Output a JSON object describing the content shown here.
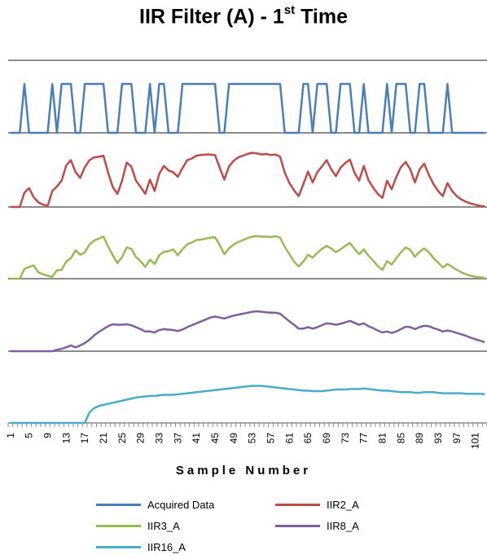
{
  "chart_data": {
    "type": "line",
    "title": "IIR Filter (A) - ",
    "title_ordinal": "1",
    "title_sup": "st",
    "title_tail": " Time",
    "xlabel": "Sample Number",
    "ylabel": "",
    "layout": "stacked panels, one series per panel, no y-axis labels, horizontal gray baselines",
    "x_tick_labels": [
      "1",
      "5",
      "9",
      "13",
      "17",
      "21",
      "25",
      "29",
      "33",
      "37",
      "41",
      "45",
      "49",
      "53",
      "57",
      "61",
      "65",
      "69",
      "73",
      "77",
      "81",
      "85",
      "89",
      "93",
      "97",
      "101"
    ],
    "x": [
      1,
      2,
      3,
      4,
      5,
      6,
      7,
      8,
      9,
      10,
      11,
      12,
      13,
      14,
      15,
      16,
      17,
      18,
      19,
      20,
      21,
      22,
      23,
      24,
      25,
      26,
      27,
      28,
      29,
      30,
      31,
      32,
      33,
      34,
      35,
      36,
      37,
      38,
      39,
      40,
      41,
      42,
      43,
      44,
      45,
      46,
      47,
      48,
      49,
      50,
      51,
      52,
      53,
      54,
      55,
      56,
      57,
      58,
      59,
      60,
      61,
      62,
      63,
      64,
      65,
      66,
      67,
      68,
      69,
      70,
      71,
      72,
      73,
      74,
      75,
      76,
      77,
      78,
      79,
      80,
      81,
      82,
      83,
      84,
      85,
      86,
      87,
      88,
      89,
      90,
      91,
      92,
      93,
      94,
      95,
      96,
      97,
      98,
      99,
      100,
      101,
      102,
      103
    ],
    "legend_position": "bottom",
    "series": [
      {
        "name": "Acquired Data",
        "color": "#4A7EBB",
        "values": [
          0,
          0,
          0,
          1,
          0,
          0,
          0,
          0,
          0,
          1,
          0,
          1,
          1,
          1,
          0,
          0,
          1,
          1,
          1,
          1,
          1,
          0,
          0,
          0,
          1,
          1,
          1,
          0,
          0,
          0,
          1,
          0,
          1,
          1,
          0,
          0,
          0,
          1,
          1,
          1,
          1,
          1,
          1,
          1,
          1,
          0,
          0,
          1,
          1,
          1,
          1,
          1,
          1,
          1,
          1,
          1,
          1,
          1,
          1,
          0,
          0,
          0,
          0,
          1,
          1,
          0,
          1,
          1,
          1,
          0,
          0,
          1,
          1,
          1,
          0,
          0,
          1,
          0,
          0,
          0,
          0,
          1,
          0,
          1,
          1,
          1,
          0,
          0,
          1,
          1,
          0,
          0,
          0,
          0,
          1,
          0,
          0,
          0,
          0,
          0,
          0,
          0,
          0
        ]
      },
      {
        "name": "IIR2_A",
        "color": "#BE4B48",
        "values": [
          0,
          0,
          0,
          0.25,
          0.33,
          0.17,
          0.08,
          0.04,
          0.02,
          0.28,
          0.36,
          0.46,
          0.73,
          0.82,
          0.61,
          0.51,
          0.7,
          0.82,
          0.87,
          0.88,
          0.9,
          0.6,
          0.35,
          0.23,
          0.46,
          0.78,
          0.71,
          0.46,
          0.35,
          0.23,
          0.48,
          0.28,
          0.58,
          0.72,
          0.64,
          0.61,
          0.53,
          0.68,
          0.82,
          0.85,
          0.9,
          0.91,
          0.92,
          0.92,
          0.91,
          0.69,
          0.48,
          0.71,
          0.81,
          0.87,
          0.9,
          0.93,
          0.95,
          0.94,
          0.92,
          0.93,
          0.91,
          0.92,
          0.88,
          0.6,
          0.42,
          0.29,
          0.19,
          0.4,
          0.62,
          0.43,
          0.61,
          0.71,
          0.82,
          0.66,
          0.54,
          0.69,
          0.77,
          0.83,
          0.6,
          0.46,
          0.72,
          0.47,
          0.34,
          0.23,
          0.16,
          0.46,
          0.31,
          0.53,
          0.7,
          0.79,
          0.66,
          0.43,
          0.66,
          0.76,
          0.56,
          0.4,
          0.28,
          0.19,
          0.42,
          0.28,
          0.19,
          0.13,
          0.09,
          0.06,
          0.04,
          0.02,
          0.01
        ]
      },
      {
        "name": "IIR3_A",
        "color": "#98B954",
        "values": [
          0,
          0,
          0,
          0.2,
          0.24,
          0.27,
          0.13,
          0.09,
          0.06,
          0.04,
          0.17,
          0.18,
          0.35,
          0.42,
          0.58,
          0.49,
          0.54,
          0.7,
          0.78,
          0.82,
          0.86,
          0.66,
          0.48,
          0.32,
          0.44,
          0.64,
          0.61,
          0.44,
          0.36,
          0.24,
          0.39,
          0.3,
          0.48,
          0.55,
          0.56,
          0.6,
          0.48,
          0.6,
          0.7,
          0.74,
          0.79,
          0.8,
          0.82,
          0.84,
          0.85,
          0.69,
          0.5,
          0.62,
          0.7,
          0.75,
          0.79,
          0.83,
          0.86,
          0.87,
          0.86,
          0.86,
          0.85,
          0.87,
          0.84,
          0.65,
          0.5,
          0.35,
          0.25,
          0.35,
          0.49,
          0.43,
          0.53,
          0.61,
          0.67,
          0.62,
          0.54,
          0.6,
          0.67,
          0.73,
          0.61,
          0.5,
          0.6,
          0.47,
          0.37,
          0.26,
          0.18,
          0.36,
          0.29,
          0.42,
          0.54,
          0.64,
          0.59,
          0.45,
          0.55,
          0.62,
          0.54,
          0.42,
          0.33,
          0.23,
          0.3,
          0.24,
          0.18,
          0.13,
          0.09,
          0.06,
          0.04,
          0.03,
          0.02
        ]
      },
      {
        "name": "IIR8_A",
        "color": "#7D60A0",
        "values": [
          0,
          0,
          0,
          0,
          0,
          0,
          0,
          0,
          0,
          0,
          0.03,
          0.05,
          0.08,
          0.12,
          0.08,
          0.12,
          0.17,
          0.24,
          0.33,
          0.4,
          0.46,
          0.52,
          0.56,
          0.55,
          0.55,
          0.56,
          0.54,
          0.5,
          0.46,
          0.41,
          0.41,
          0.39,
          0.44,
          0.46,
          0.45,
          0.44,
          0.42,
          0.45,
          0.5,
          0.54,
          0.58,
          0.62,
          0.66,
          0.7,
          0.72,
          0.7,
          0.68,
          0.71,
          0.74,
          0.76,
          0.78,
          0.8,
          0.82,
          0.83,
          0.82,
          0.81,
          0.8,
          0.8,
          0.78,
          0.7,
          0.62,
          0.55,
          0.47,
          0.47,
          0.5,
          0.47,
          0.5,
          0.54,
          0.58,
          0.57,
          0.55,
          0.57,
          0.6,
          0.63,
          0.59,
          0.55,
          0.58,
          0.52,
          0.48,
          0.43,
          0.39,
          0.41,
          0.38,
          0.41,
          0.46,
          0.51,
          0.5,
          0.46,
          0.5,
          0.53,
          0.52,
          0.48,
          0.45,
          0.41,
          0.43,
          0.41,
          0.38,
          0.35,
          0.32,
          0.28,
          0.25,
          0.22,
          0.19
        ]
      },
      {
        "name": "IIR16_A",
        "color": "#4BACC6",
        "values": [
          0,
          0,
          0,
          0,
          0,
          0,
          0,
          0,
          0,
          0,
          0,
          0,
          0,
          0,
          0,
          0,
          0,
          0.2,
          0.28,
          0.32,
          0.34,
          0.36,
          0.38,
          0.4,
          0.42,
          0.44,
          0.46,
          0.48,
          0.49,
          0.5,
          0.51,
          0.51,
          0.52,
          0.53,
          0.53,
          0.53,
          0.54,
          0.55,
          0.56,
          0.57,
          0.58,
          0.59,
          0.6,
          0.61,
          0.62,
          0.63,
          0.64,
          0.65,
          0.66,
          0.67,
          0.68,
          0.69,
          0.7,
          0.7,
          0.7,
          0.69,
          0.68,
          0.67,
          0.66,
          0.65,
          0.64,
          0.63,
          0.62,
          0.61,
          0.61,
          0.6,
          0.6,
          0.6,
          0.61,
          0.62,
          0.63,
          0.63,
          0.63,
          0.64,
          0.64,
          0.64,
          0.65,
          0.64,
          0.63,
          0.62,
          0.61,
          0.61,
          0.6,
          0.59,
          0.58,
          0.58,
          0.58,
          0.57,
          0.57,
          0.58,
          0.58,
          0.58,
          0.57,
          0.56,
          0.56,
          0.56,
          0.56,
          0.56,
          0.55,
          0.55,
          0.55,
          0.55,
          0.54
        ]
      }
    ]
  }
}
